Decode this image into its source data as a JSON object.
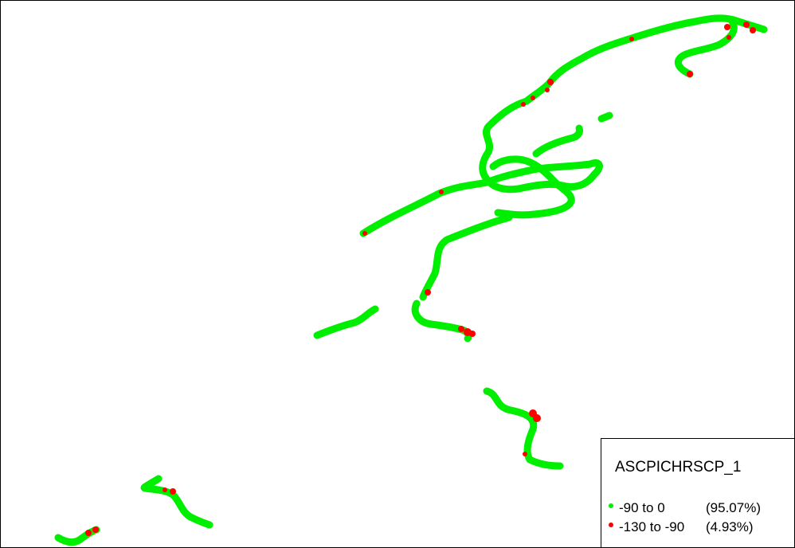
{
  "legend": {
    "title": "ASCPICHRSCP_1",
    "items": [
      {
        "range": "-90 to 0",
        "percent": "(95.07%)",
        "color": "#00ee00"
      },
      {
        "range": "-130 to -90",
        "percent": "(4.93%)",
        "color": "#ff0000"
      }
    ]
  },
  "colors": {
    "good": "#00ee00",
    "bad": "#ff0000",
    "border": "#000000",
    "background": "#ffffff"
  }
}
